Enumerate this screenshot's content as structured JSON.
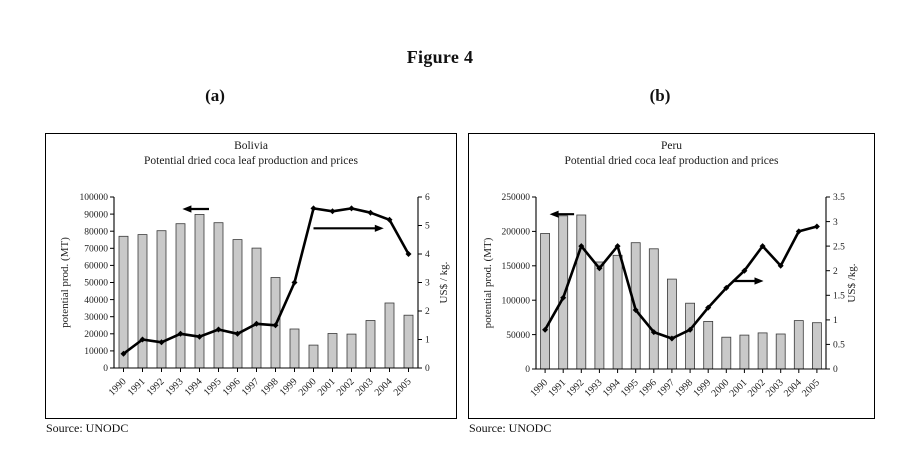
{
  "figure": {
    "title": "Figure 4",
    "panels": [
      {
        "label": "(a)"
      },
      {
        "label": "(b)"
      }
    ],
    "source": "Source: UNODC"
  },
  "chart_data": [
    {
      "type": "bar",
      "combo": "bar+line",
      "title": "Bolivia",
      "subtitle": "Potential dried coca leaf production and prices",
      "categories": [
        "1990",
        "1991",
        "1992",
        "1993",
        "1994",
        "1995",
        "1996",
        "1997",
        "1998",
        "1999",
        "2000",
        "2001",
        "2002",
        "2003",
        "2004",
        "2005"
      ],
      "series": [
        {
          "name": "potential production",
          "type": "bar",
          "axis": "left",
          "values": [
            77000,
            78000,
            80300,
            84400,
            89800,
            85000,
            75100,
            70100,
            52900,
            22800,
            13400,
            20200,
            19800,
            27800,
            38000,
            30900
          ]
        },
        {
          "name": "price",
          "type": "line",
          "axis": "right",
          "values": [
            0.5,
            1.0,
            0.9,
            1.2,
            1.1,
            1.35,
            1.2,
            1.55,
            1.5,
            3.0,
            5.6,
            5.5,
            5.6,
            5.45,
            5.2,
            4.0
          ]
        }
      ],
      "left_axis": {
        "label": "potential prod. (MT)",
        "min": 0,
        "max": 100000,
        "ticks": [
          "0",
          "10000",
          "20000",
          "30000",
          "40000",
          "50000",
          "60000",
          "70000",
          "80000",
          "90000",
          "100000"
        ]
      },
      "right_axis": {
        "label": "US$ / kg.",
        "min": 0,
        "max": 6,
        "ticks": [
          "0",
          "1",
          "2",
          "3",
          "4",
          "5",
          "6"
        ]
      },
      "annotations": [
        {
          "type": "arrow",
          "points_to": "left-axis",
          "from_idx": 4.5,
          "to_idx": 3.1,
          "y_right": 5.58
        },
        {
          "type": "arrow",
          "points_to": "right-axis",
          "from_idx": 10.0,
          "to_idx": 13.7,
          "y_right": 4.9
        }
      ],
      "grid": false,
      "legend": false
    },
    {
      "type": "bar",
      "combo": "bar+line",
      "title": "Peru",
      "subtitle": "Potential dried coca leaf production and prices",
      "categories": [
        "1990",
        "1991",
        "1992",
        "1993",
        "1994",
        "1995",
        "1996",
        "1997",
        "1998",
        "1999",
        "2000",
        "2001",
        "2002",
        "2003",
        "2004",
        "2005"
      ],
      "series": [
        {
          "name": "potential production",
          "type": "bar",
          "axis": "left",
          "values": [
            196900,
            222700,
            223900,
            155500,
            165300,
            183600,
            174700,
            130600,
            95600,
            69200,
            46200,
            49300,
            52500,
            50800,
            70300,
            67300
          ]
        },
        {
          "name": "price",
          "type": "line",
          "axis": "right",
          "values": [
            0.8,
            1.45,
            2.5,
            2.05,
            2.5,
            1.2,
            0.75,
            0.62,
            0.8,
            1.25,
            1.65,
            2.0,
            2.5,
            2.1,
            2.8,
            2.9
          ]
        }
      ],
      "left_axis": {
        "label": "potential prod. (MT)",
        "min": 0,
        "max": 250000,
        "ticks": [
          "0",
          "50000",
          "100000",
          "150000",
          "200000",
          "250000"
        ]
      },
      "right_axis": {
        "label": "US$ /kg.",
        "min": 0,
        "max": 3.5,
        "ticks": [
          "0",
          "0.5",
          "1",
          "1.5",
          "2",
          "2.5",
          "3",
          "3.5"
        ]
      },
      "annotations": [
        {
          "type": "arrow",
          "points_to": "left-axis",
          "from_idx": 1.6,
          "to_idx": 0.25,
          "y_right": 3.15
        },
        {
          "type": "arrow",
          "points_to": "right-axis",
          "from_idx": 10.35,
          "to_idx": 12.05,
          "y_right": 1.79
        }
      ],
      "grid": false,
      "legend": false
    }
  ]
}
